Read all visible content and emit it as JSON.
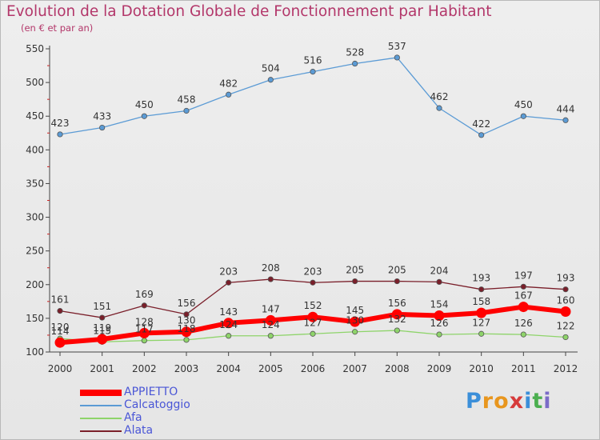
{
  "chart_data": {
    "type": "line",
    "title": "Evolution de la Dotation Globale de Fonctionnement par Habitant",
    "subtitle": "(en € et par an)",
    "xlabel": "",
    "ylabel": "",
    "categories": [
      "2000",
      "2001",
      "2002",
      "2003",
      "2004",
      "2005",
      "2006",
      "2007",
      "2008",
      "2009",
      "2010",
      "2011",
      "2012"
    ],
    "ylim": [
      100,
      550
    ],
    "yticks": [
      100,
      150,
      200,
      250,
      300,
      350,
      400,
      450,
      500,
      550
    ],
    "grid": false,
    "legend_position": "bottom-left",
    "series": [
      {
        "name": "APPIETTO",
        "color": "#ff0000",
        "values": [
          114,
          119,
          128,
          130,
          143,
          147,
          152,
          145,
          156,
          154,
          158,
          167,
          160
        ]
      },
      {
        "name": "Calcatoggio",
        "color": "#5b9bd5",
        "values": [
          423,
          433,
          450,
          458,
          482,
          504,
          516,
          528,
          537,
          462,
          422,
          450,
          444
        ]
      },
      {
        "name": "Afa",
        "color": "#8ed46a",
        "values": [
          120,
          115,
          117,
          118,
          124,
          124,
          127,
          130,
          132,
          126,
          127,
          126,
          122
        ]
      },
      {
        "name": "Alata",
        "color": "#7a1f2a",
        "values": [
          161,
          151,
          169,
          156,
          203,
          208,
          203,
          205,
          205,
          204,
          193,
          197,
          193
        ]
      }
    ]
  },
  "logo": {
    "text": "Proxiti",
    "letters": [
      "P",
      "r",
      "o",
      "x",
      "i",
      "t",
      "i"
    ],
    "colors": [
      "#3b8fd9",
      "#e8961e",
      "#e8961e",
      "#d63a3a",
      "#3b8fd9",
      "#4caf50",
      "#7b6cc8"
    ]
  }
}
